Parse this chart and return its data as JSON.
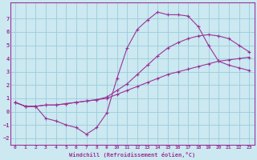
{
  "xlabel": "Windchill (Refroidissement éolien,°C)",
  "background_color": "#cce8f0",
  "line_color": "#993399",
  "grid_color": "#99ccdd",
  "xlim": [
    -0.5,
    23.5
  ],
  "ylim": [
    -2.5,
    8.2
  ],
  "xticks": [
    0,
    1,
    2,
    3,
    4,
    5,
    6,
    7,
    8,
    9,
    10,
    11,
    12,
    13,
    14,
    15,
    16,
    17,
    18,
    19,
    20,
    21,
    22,
    23
  ],
  "yticks": [
    -2,
    -1,
    0,
    1,
    2,
    3,
    4,
    5,
    6,
    7
  ],
  "line1_x": [
    0,
    1,
    2,
    3,
    4,
    5,
    6,
    7,
    8,
    9,
    10,
    11,
    12,
    13,
    14,
    15,
    16,
    17,
    18,
    19,
    20,
    21,
    22,
    23
  ],
  "line1_y": [
    0.7,
    0.4,
    0.4,
    0.5,
    0.5,
    0.6,
    0.7,
    0.8,
    0.9,
    1.0,
    1.3,
    1.6,
    1.9,
    2.2,
    2.5,
    2.8,
    3.0,
    3.2,
    3.4,
    3.6,
    3.8,
    3.9,
    4.0,
    4.1
  ],
  "line2_x": [
    0,
    1,
    2,
    3,
    4,
    5,
    6,
    7,
    8,
    9,
    10,
    11,
    12,
    13,
    14,
    15,
    16,
    17,
    18,
    19,
    20,
    21,
    22,
    23
  ],
  "line2_y": [
    0.7,
    0.4,
    0.4,
    0.5,
    0.5,
    0.6,
    0.7,
    0.8,
    0.9,
    1.1,
    1.6,
    2.1,
    2.8,
    3.5,
    4.2,
    4.8,
    5.2,
    5.5,
    5.7,
    5.8,
    5.7,
    5.5,
    5.0,
    4.5
  ],
  "line3_x": [
    0,
    1,
    2,
    3,
    4,
    5,
    6,
    7,
    8,
    9,
    10,
    11,
    12,
    13,
    14,
    15,
    16,
    17,
    18,
    19,
    20,
    21,
    22,
    23
  ],
  "line3_y": [
    0.7,
    0.4,
    0.4,
    -0.5,
    -0.7,
    -1.0,
    -1.2,
    -1.7,
    -1.2,
    -0.1,
    2.5,
    4.8,
    6.2,
    6.9,
    7.5,
    7.3,
    7.3,
    7.2,
    6.4,
    5.0,
    3.8,
    3.5,
    3.3,
    3.1
  ]
}
